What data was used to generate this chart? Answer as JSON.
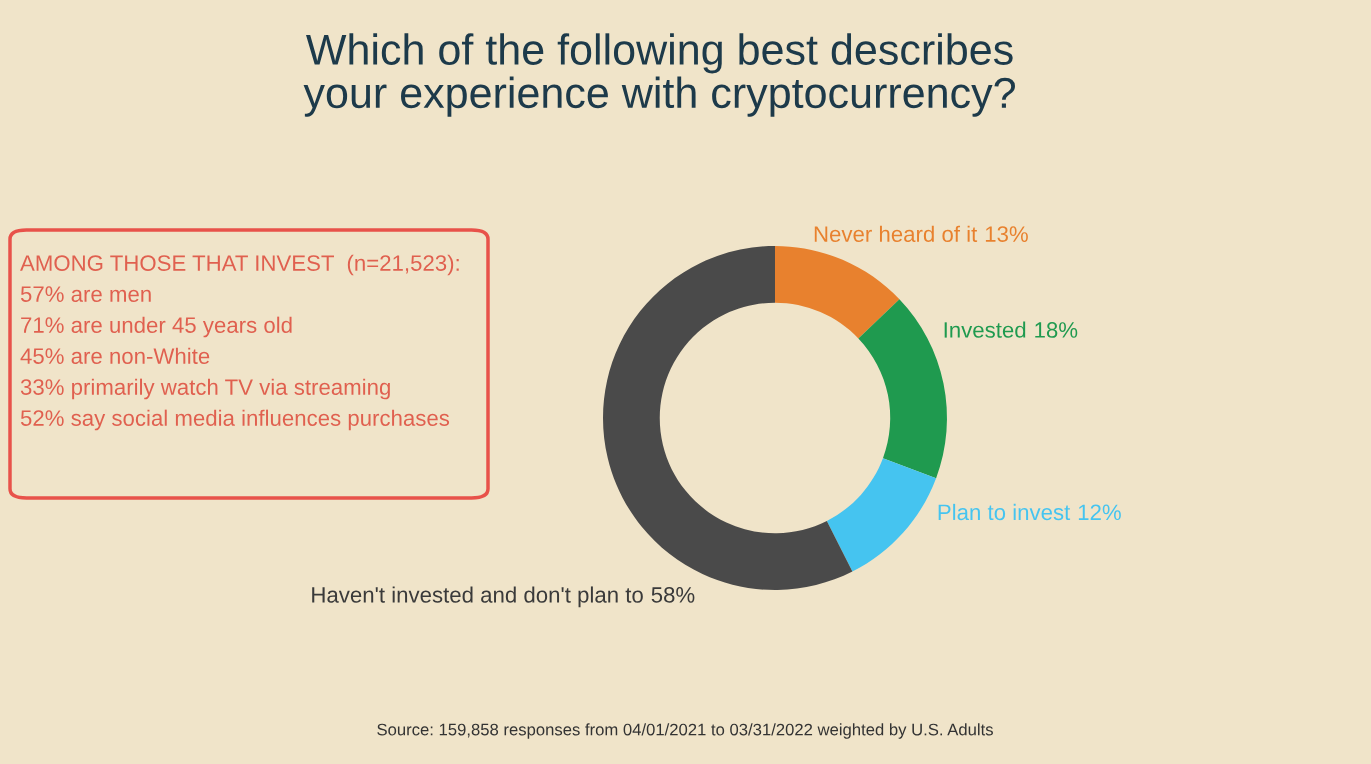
{
  "chart_data": {
    "type": "donut",
    "title": "Which of the following best describes\nyour experience with cryptocurrency?",
    "categories": [
      "Never heard of it",
      "Invested",
      "Plan to invest",
      "Haven't invested and don't plan to"
    ],
    "values": [
      13,
      18,
      12,
      58
    ],
    "value_labels": [
      "13%",
      "18%",
      "12%",
      "58%"
    ],
    "colors": [
      "#e8812e",
      "#1f9a4f",
      "#45c4f0",
      "#4a4a4a"
    ],
    "annotations": [
      "AMONG THOSE THAT INVEST  (n=21,523):",
      "57% are men",
      "71% are under 45 years old",
      "45% are non-White",
      "33% primarily watch TV via streaming",
      "52% say social media influences purchases",
      "Source: 159,858 responses from 04/01/2021 to 03/31/2022 weighted by U.S. Adults"
    ]
  }
}
